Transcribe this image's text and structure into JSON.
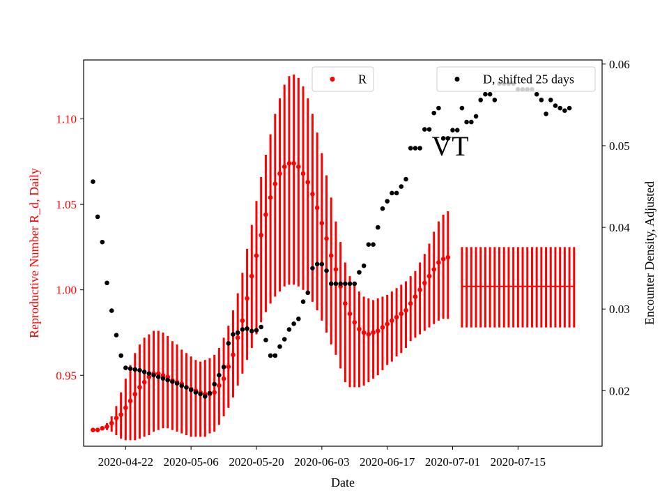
{
  "chart_data": {
    "type": "scatter",
    "annotation": "VT",
    "xlabel": "Date",
    "ylabel_left": "Reproductive Number R_d, Daily",
    "ylabel_right": "Encounter Density, Adjusted",
    "x_ticks": [
      "2020-04-22",
      "2020-05-06",
      "2020-05-20",
      "2020-06-03",
      "2020-06-17",
      "2020-07-01",
      "2020-07-15"
    ],
    "y_left_ticks": [
      0.95,
      1.0,
      1.05,
      1.1
    ],
    "y_left_tick_labels": [
      "0.95",
      "1.00",
      "1.05",
      "1.10"
    ],
    "y_right_ticks": [
      0.02,
      0.03,
      0.04,
      0.05,
      0.06
    ],
    "y_right_tick_labels": [
      "0.02",
      "0.03",
      "0.04",
      "0.05",
      "0.06"
    ],
    "ylim_left": [
      0.9085,
      1.1345
    ],
    "ylim_right": [
      0.0132,
      0.0605
    ],
    "xlim": [
      "2020-04-13",
      "2020-08-02"
    ],
    "legend_left": {
      "label": "R",
      "position": "top-center"
    },
    "legend_right": {
      "label": "D, shifted 25 days",
      "position": "top-right"
    },
    "colors": {
      "r_series": "#ff0000",
      "d_series": "#000000",
      "left_axis": "#ff0000",
      "right_axis": "#000000"
    },
    "series": [
      {
        "name": "R",
        "axis": "left",
        "color": "#ff0000",
        "start_date": "2020-04-15",
        "values": [
          0.918,
          0.918,
          0.919,
          0.92,
          0.922,
          0.925,
          0.927,
          0.931,
          0.935,
          0.939,
          0.943,
          0.946,
          0.949,
          0.951,
          0.951,
          0.95,
          0.949,
          0.947,
          0.946,
          0.945,
          0.943,
          0.942,
          0.941,
          0.94,
          0.939,
          0.939,
          0.94,
          0.944,
          0.948,
          0.955,
          0.962,
          0.972,
          0.982,
          0.995,
          1.008,
          1.02,
          1.032,
          1.044,
          1.054,
          1.062,
          1.068,
          1.072,
          1.074,
          1.074,
          1.072,
          1.068,
          1.063,
          1.056,
          1.048,
          1.039,
          1.03,
          1.02,
          1.012,
          1.002,
          0.992,
          0.986,
          0.981,
          0.977,
          0.975,
          0.974,
          0.975,
          0.976,
          0.978,
          0.98,
          0.982,
          0.984,
          0.986,
          0.988,
          0.992,
          0.996,
          1.0,
          1.004,
          1.008,
          1.012,
          1.016,
          1.018,
          1.019
        ],
        "lower": [
          0.918,
          0.918,
          0.919,
          0.918,
          0.917,
          0.915,
          0.913,
          0.912,
          0.912,
          0.912,
          0.913,
          0.914,
          0.915,
          0.917,
          0.918,
          0.919,
          0.919,
          0.918,
          0.917,
          0.916,
          0.915,
          0.914,
          0.914,
          0.914,
          0.914,
          0.916,
          0.917,
          0.921,
          0.926,
          0.931,
          0.937,
          0.944,
          0.951,
          0.959,
          0.966,
          0.974,
          0.981,
          0.987,
          0.992,
          0.996,
          0.999,
          1.002,
          1.003,
          1.003,
          1.002,
          1.0,
          0.997,
          0.993,
          0.988,
          0.982,
          0.975,
          0.968,
          0.962,
          0.954,
          0.946,
          0.943,
          0.943,
          0.943,
          0.944,
          0.946,
          0.948,
          0.95,
          0.953,
          0.956,
          0.958,
          0.961,
          0.963,
          0.966,
          0.97,
          0.972,
          0.974,
          0.976,
          0.978,
          0.98,
          0.982,
          0.983,
          0.983
        ],
        "upper": [
          0.918,
          0.918,
          0.92,
          0.922,
          0.926,
          0.932,
          0.94,
          0.948,
          0.956,
          0.963,
          0.968,
          0.972,
          0.974,
          0.976,
          0.976,
          0.975,
          0.973,
          0.97,
          0.968,
          0.965,
          0.963,
          0.961,
          0.959,
          0.958,
          0.959,
          0.96,
          0.962,
          0.966,
          0.972,
          0.979,
          0.988,
          0.998,
          1.01,
          1.024,
          1.038,
          1.052,
          1.066,
          1.079,
          1.091,
          1.103,
          1.112,
          1.12,
          1.125,
          1.126,
          1.124,
          1.119,
          1.112,
          1.103,
          1.092,
          1.08,
          1.067,
          1.054,
          1.04,
          1.028,
          1.016,
          1.008,
          1.003,
          0.999,
          0.996,
          0.995,
          0.994,
          0.995,
          0.996,
          0.997,
          0.999,
          1.001,
          1.003,
          1.005,
          1.008,
          1.011,
          1.016,
          1.021,
          1.027,
          1.034,
          1.04,
          1.044,
          1.046
        ]
      },
      {
        "name": "R (projection)",
        "axis": "left",
        "color": "#ff0000",
        "start_date": "2020-07-03",
        "values": [
          1.002,
          1.002,
          1.002,
          1.002,
          1.002,
          1.002,
          1.002,
          1.002,
          1.002,
          1.002,
          1.002,
          1.002,
          1.002,
          1.002,
          1.002,
          1.002,
          1.002,
          1.002,
          1.002,
          1.002,
          1.002,
          1.002,
          1.002,
          1.002,
          1.002
        ],
        "lower": [
          0.978,
          0.978,
          0.978,
          0.978,
          0.978,
          0.978,
          0.978,
          0.978,
          0.978,
          0.978,
          0.978,
          0.978,
          0.978,
          0.978,
          0.978,
          0.978,
          0.978,
          0.978,
          0.978,
          0.978,
          0.978,
          0.978,
          0.978,
          0.978,
          0.978
        ],
        "upper": [
          1.025,
          1.025,
          1.025,
          1.025,
          1.025,
          1.025,
          1.025,
          1.025,
          1.025,
          1.025,
          1.025,
          1.025,
          1.025,
          1.025,
          1.025,
          1.025,
          1.025,
          1.025,
          1.025,
          1.025,
          1.025,
          1.025,
          1.025,
          1.025,
          1.025
        ]
      },
      {
        "name": "D, shifted 25 days",
        "axis": "right",
        "color": "#000000",
        "start_date": "2020-04-15",
        "values": [
          0.0456,
          0.0413,
          0.0382,
          0.0332,
          0.0298,
          0.0268,
          0.0243,
          0.0228,
          0.0227,
          0.0226,
          0.0225,
          0.0223,
          0.0221,
          0.0219,
          0.0217,
          0.0215,
          0.0213,
          0.0211,
          0.0209,
          0.0206,
          0.0204,
          0.0201,
          0.0198,
          0.0196,
          0.0193,
          0.0197,
          0.0208,
          0.0219,
          0.0229,
          0.0258,
          0.0269,
          0.0271,
          0.0275,
          0.0276,
          0.0273,
          0.0274,
          0.0278,
          0.0262,
          0.0243,
          0.0243,
          0.0254,
          0.0263,
          0.0275,
          0.0282,
          0.0288,
          0.0309,
          0.032,
          0.035,
          0.0355,
          0.0355,
          0.0347,
          0.0331,
          0.0331,
          0.0331,
          0.0331,
          0.0331,
          0.0331,
          0.0345,
          0.0353,
          0.0379,
          0.0379,
          0.04,
          0.0423,
          0.0432,
          0.0442,
          0.0442,
          0.045,
          0.0459,
          0.0497,
          0.0497,
          0.0497,
          0.052,
          0.052,
          0.054,
          0.0546,
          0.0509,
          0.0509,
          0.0519,
          0.0519,
          0.0546,
          0.0529,
          0.0529,
          0.0536,
          0.0556,
          0.0563,
          0.0563,
          0.0556,
          0.0576,
          0.0576,
          0.0576,
          0.0576,
          0.0569,
          0.0569,
          0.0569,
          0.0569,
          0.0563,
          0.0556,
          0.0539,
          0.0556,
          0.0549,
          0.0546,
          0.0543,
          0.0546
        ]
      }
    ]
  }
}
